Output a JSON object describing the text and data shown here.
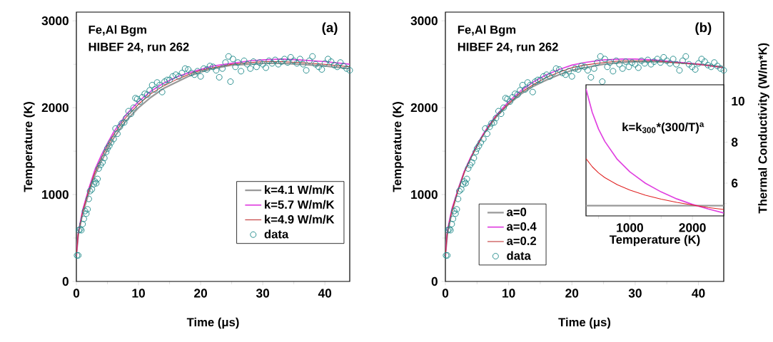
{
  "chart_data": [
    {
      "type": "line",
      "title": "(a)",
      "xlabel": "Time (μs)",
      "ylabel": "Temperature (K)",
      "annotations": [
        "Fe,Al Bgm",
        "HIBEF 24, run 262"
      ],
      "xlim": [
        0,
        44
      ],
      "ylim": [
        0,
        3100
      ],
      "xticks": [
        0,
        10,
        20,
        30,
        40,
        {
          "value": 5,
          "label": null
        },
        {
          "value": 15,
          "label": null
        },
        {
          "value": 25,
          "label": null
        },
        {
          "value": 35,
          "label": null
        }
      ],
      "yticks": [
        0,
        1000,
        2000,
        3000,
        {
          "value": 500,
          "label": null
        },
        {
          "value": 1500,
          "label": null
        },
        {
          "value": 2500,
          "label": null
        }
      ],
      "legend": "bottom right",
      "series": [
        {
          "name": "k=4.1 W/m/K",
          "color": "#999999",
          "type": "line",
          "x": [
            0,
            0.3,
            1,
            2,
            3,
            4,
            5,
            6,
            7,
            8,
            10,
            12,
            14,
            16,
            18,
            20,
            22,
            25,
            28,
            30,
            33,
            36,
            40,
            44
          ],
          "values": [
            300,
            540,
            780,
            1020,
            1230,
            1380,
            1520,
            1650,
            1750,
            1850,
            2000,
            2120,
            2220,
            2290,
            2360,
            2410,
            2450,
            2490,
            2500,
            2510,
            2510,
            2500,
            2480,
            2450
          ]
        },
        {
          "name": "k=5.7 W/m/K",
          "color": "#e040e0",
          "type": "line",
          "x": [
            0,
            0.3,
            1,
            2,
            3,
            4,
            5,
            6,
            7,
            8,
            10,
            12,
            14,
            16,
            18,
            20,
            22,
            25,
            28,
            30,
            33,
            36,
            40,
            44
          ],
          "values": [
            300,
            560,
            820,
            1070,
            1290,
            1450,
            1590,
            1720,
            1820,
            1920,
            2070,
            2190,
            2280,
            2350,
            2400,
            2440,
            2480,
            2510,
            2540,
            2550,
            2560,
            2550,
            2530,
            2500
          ]
        },
        {
          "name": "k=4.9 W/m/K",
          "color": "#c03030",
          "type": "line",
          "x": [
            0,
            0.3,
            1,
            2,
            3,
            4,
            5,
            6,
            7,
            8,
            10,
            12,
            14,
            16,
            18,
            20,
            22,
            25,
            28,
            30,
            33,
            36,
            40,
            44
          ],
          "values": [
            300,
            550,
            800,
            1050,
            1260,
            1420,
            1560,
            1690,
            1790,
            1890,
            2040,
            2160,
            2250,
            2320,
            2380,
            2430,
            2460,
            2500,
            2520,
            2530,
            2530,
            2520,
            2500,
            2470
          ]
        },
        {
          "name": "data",
          "color": "#1f8a8a",
          "type": "scatter",
          "marker": "circle",
          "x": [
            0.1,
            0.3,
            0.4,
            0.6,
            0.8,
            1.0,
            1.2,
            1.4,
            1.6,
            1.8,
            2.0,
            2.2,
            2.5,
            2.8,
            3.0,
            3.2,
            3.4,
            3.6,
            3.9,
            4.2,
            4.5,
            4.8,
            5.0,
            5.3,
            5.6,
            6.0,
            6.3,
            6.6,
            7.0,
            7.3,
            7.7,
            8.0,
            8.4,
            8.8,
            9.2,
            9.5,
            9.8,
            10.2,
            10.6,
            11.0,
            11.4,
            11.8,
            12.2,
            12.6,
            13.0,
            13.4,
            13.8,
            14.2,
            14.6,
            15.0,
            15.5,
            16.0,
            16.5,
            17.0,
            17.5,
            18.0,
            18.5,
            19.0,
            19.5,
            20.0,
            20.5,
            21.0,
            21.5,
            22.0,
            22.5,
            23.0,
            23.5,
            24.0,
            24.5,
            24.8,
            25.2,
            25.6,
            26.0,
            26.5,
            27.0,
            27.5,
            28.0,
            28.5,
            29.0,
            29.5,
            30.0,
            30.5,
            31.0,
            31.5,
            32.0,
            32.5,
            33.0,
            33.5,
            34.0,
            34.5,
            35.0,
            35.5,
            36.0,
            36.5,
            37.0,
            37.5,
            38.0,
            38.5,
            39.0,
            39.5,
            40.0,
            40.5,
            41.0,
            41.5,
            42.0,
            42.5,
            43.0,
            43.5,
            44.0
          ],
          "values": [
            300,
            300,
            590,
            600,
            590,
            660,
            720,
            810,
            780,
            830,
            950,
            1040,
            1060,
            1120,
            1150,
            1130,
            1180,
            1300,
            1340,
            1370,
            1420,
            1490,
            1530,
            1560,
            1600,
            1640,
            1760,
            1700,
            1780,
            1820,
            1830,
            1880,
            1960,
            1930,
            2000,
            2110,
            2100,
            2070,
            2120,
            2160,
            2150,
            2200,
            2260,
            2210,
            2290,
            2260,
            2180,
            2300,
            2320,
            2320,
            2360,
            2380,
            2360,
            2400,
            2450,
            2440,
            2400,
            2380,
            2420,
            2360,
            2450,
            2440,
            2480,
            2470,
            2430,
            2350,
            2450,
            2520,
            2590,
            2300,
            2560,
            2470,
            2520,
            2420,
            2540,
            2500,
            2450,
            2530,
            2470,
            2520,
            2500,
            2460,
            2540,
            2510,
            2550,
            2500,
            2530,
            2560,
            2520,
            2580,
            2540,
            2510,
            2560,
            2500,
            2430,
            2540,
            2590,
            2500,
            2470,
            2440,
            2510,
            2560,
            2530,
            2490,
            2470,
            2520,
            2480,
            2450,
            2430
          ]
        }
      ]
    },
    {
      "type": "line",
      "title": "(b)",
      "xlabel": "Time (μs)",
      "ylabel": "Temperature (K)",
      "annotations": [
        "Fe,Al Bgm",
        "HIBEF 24, run 262"
      ],
      "xlim": [
        0,
        44
      ],
      "ylim": [
        0,
        3100
      ],
      "xticks": [
        0,
        10,
        20,
        30,
        40,
        {
          "value": 5,
          "label": null
        },
        {
          "value": 15,
          "label": null
        },
        {
          "value": 25,
          "label": null
        },
        {
          "value": 35,
          "label": null
        }
      ],
      "yticks": [
        0,
        1000,
        2000,
        3000,
        {
          "value": 500,
          "label": null
        },
        {
          "value": 1500,
          "label": null
        },
        {
          "value": 2500,
          "label": null
        }
      ],
      "legend": "bottom left",
      "series": [
        {
          "name": "a=0",
          "color": "#999999",
          "type": "line",
          "x": [
            0,
            0.3,
            1,
            2,
            3,
            4,
            5,
            6,
            7,
            8,
            10,
            12,
            14,
            16,
            18,
            20,
            22,
            25,
            28,
            30,
            33,
            36,
            40,
            44
          ],
          "values": [
            300,
            540,
            790,
            1050,
            1260,
            1420,
            1560,
            1690,
            1790,
            1890,
            2040,
            2160,
            2250,
            2320,
            2380,
            2430,
            2460,
            2500,
            2520,
            2530,
            2530,
            2520,
            2500,
            2470
          ]
        },
        {
          "name": "a=0.4",
          "color": "#e040e0",
          "type": "line",
          "x": [
            0,
            0.3,
            1,
            2,
            3,
            4,
            5,
            6,
            7,
            8,
            10,
            12,
            14,
            16,
            18,
            20,
            22,
            25,
            28,
            30,
            33,
            36,
            40,
            44
          ],
          "values": [
            300,
            580,
            830,
            1060,
            1270,
            1430,
            1570,
            1700,
            1810,
            1910,
            2070,
            2200,
            2300,
            2380,
            2440,
            2490,
            2520,
            2550,
            2560,
            2560,
            2550,
            2530,
            2500,
            2460
          ]
        },
        {
          "name": "a=0.2",
          "color": "#c03030",
          "type": "line",
          "x": [
            0,
            0.3,
            1,
            2,
            3,
            4,
            5,
            6,
            7,
            8,
            10,
            12,
            14,
            16,
            18,
            20,
            22,
            25,
            28,
            30,
            33,
            36,
            40,
            44
          ],
          "values": [
            300,
            560,
            810,
            1050,
            1260,
            1420,
            1560,
            1690,
            1800,
            1900,
            2050,
            2180,
            2270,
            2350,
            2410,
            2460,
            2490,
            2520,
            2540,
            2540,
            2540,
            2520,
            2500,
            2460
          ]
        },
        {
          "name": "data",
          "color": "#1f8a8a",
          "type": "scatter",
          "marker": "circle",
          "x": [
            0.1,
            0.3,
            0.4,
            0.6,
            0.8,
            1.0,
            1.2,
            1.4,
            1.6,
            1.8,
            2.0,
            2.2,
            2.5,
            2.8,
            3.0,
            3.2,
            3.4,
            3.6,
            3.9,
            4.2,
            4.5,
            4.8,
            5.0,
            5.3,
            5.6,
            6.0,
            6.3,
            6.6,
            7.0,
            7.3,
            7.7,
            8.0,
            8.4,
            8.8,
            9.2,
            9.5,
            9.8,
            10.2,
            10.6,
            11.0,
            11.4,
            11.8,
            12.2,
            12.6,
            13.0,
            13.4,
            13.8,
            14.2,
            14.6,
            15.0,
            15.5,
            16.0,
            16.5,
            17.0,
            17.5,
            18.0,
            18.5,
            19.0,
            19.5,
            20.0,
            20.5,
            21.0,
            21.5,
            22.0,
            22.5,
            23.0,
            23.5,
            24.0,
            24.5,
            24.8,
            25.2,
            25.6,
            26.0,
            26.5,
            27.0,
            27.5,
            28.0,
            28.5,
            29.0,
            29.5,
            30.0,
            30.5,
            31.0,
            31.5,
            32.0,
            32.5,
            33.0,
            33.5,
            34.0,
            34.5,
            35.0,
            35.5,
            36.0,
            36.5,
            37.0,
            37.5,
            38.0,
            38.5,
            39.0,
            39.5,
            40.0,
            40.5,
            41.0,
            41.5,
            42.0,
            42.5,
            43.0,
            43.5,
            44.0
          ],
          "values": [
            300,
            300,
            590,
            600,
            590,
            660,
            720,
            810,
            780,
            830,
            950,
            1040,
            1060,
            1120,
            1150,
            1130,
            1180,
            1300,
            1340,
            1370,
            1420,
            1490,
            1530,
            1560,
            1600,
            1640,
            1760,
            1700,
            1780,
            1820,
            1830,
            1880,
            1960,
            1930,
            2000,
            2110,
            2100,
            2070,
            2120,
            2160,
            2150,
            2200,
            2260,
            2210,
            2290,
            2260,
            2180,
            2300,
            2320,
            2320,
            2360,
            2380,
            2360,
            2400,
            2450,
            2440,
            2400,
            2380,
            2420,
            2360,
            2450,
            2440,
            2480,
            2470,
            2430,
            2350,
            2450,
            2520,
            2590,
            2300,
            2560,
            2470,
            2520,
            2420,
            2540,
            2500,
            2450,
            2530,
            2470,
            2520,
            2500,
            2460,
            2540,
            2510,
            2550,
            2500,
            2530,
            2560,
            2520,
            2580,
            2540,
            2510,
            2560,
            2500,
            2430,
            2540,
            2590,
            2500,
            2470,
            2440,
            2510,
            2560,
            2530,
            2490,
            2470,
            2520,
            2480,
            2450,
            2430
          ]
        }
      ]
    },
    {
      "type": "line",
      "xlabel": "Temperature (K)",
      "y2label": "Thermal Conductivity (W/m*K)",
      "annotations": [
        "k=k$_{300}$*(300/T)$^{a}$"
      ],
      "xlim": [
        300,
        2500
      ],
      "y2lim": [
        4.4,
        10.8
      ],
      "xticks": [
        1000,
        2000,
        {
          "value": 500,
          "label": null
        },
        {
          "value": 1500,
          "label": null
        }
      ],
      "y2ticks": [
        6,
        8,
        10,
        {
          "value": 5,
          "label": null
        },
        {
          "value": 7,
          "label": null
        },
        {
          "value": 9,
          "label": null
        }
      ],
      "series": [
        {
          "color": "#999999",
          "axis": "y2",
          "x": [
            300,
            2500
          ],
          "values": [
            4.9,
            4.9
          ]
        },
        {
          "color": "#e040e0",
          "axis": "y2",
          "x": [
            300,
            400,
            500,
            600,
            800,
            1000,
            1250,
            1500,
            1750,
            2000,
            2250,
            2500
          ],
          "values": [
            10.6,
            9.45,
            8.64,
            8.04,
            7.16,
            6.55,
            5.99,
            5.57,
            5.23,
            4.96,
            4.74,
            4.54
          ]
        },
        {
          "color": "#e02020",
          "axis": "y2",
          "x": [
            300,
            400,
            500,
            600,
            800,
            1000,
            1250,
            1500,
            1750,
            2000,
            2250,
            2500
          ],
          "values": [
            7.2,
            6.8,
            6.5,
            6.27,
            5.92,
            5.66,
            5.41,
            5.22,
            5.06,
            4.93,
            4.81,
            4.71
          ]
        }
      ]
    }
  ]
}
